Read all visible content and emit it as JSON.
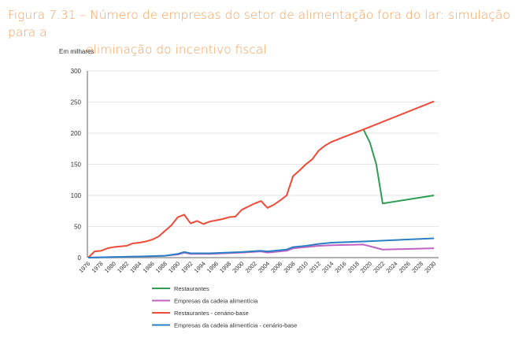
{
  "title_line1": "Figura 7.31 – Número de empresas do setor de alimentação fora do lar: simulação para a",
  "title_line2": "eliminação do incentivo fiscal",
  "chart_data": {
    "type": "line",
    "title": "Figura 7.31 – Número de empresas do setor de alimentação fora do lar: simulação para a eliminação do incentivo fiscal",
    "ylabel": "Em milhares",
    "xlabel": "",
    "ylim": [
      0,
      300
    ],
    "yticks": [
      0,
      50,
      100,
      150,
      200,
      250,
      300
    ],
    "xlim": [
      1976,
      2030
    ],
    "xticks": [
      1976,
      1978,
      1980,
      1982,
      1984,
      1986,
      1988,
      1990,
      1992,
      1994,
      1996,
      1998,
      2000,
      2002,
      2004,
      2006,
      2008,
      2010,
      2012,
      2014,
      2016,
      2018,
      2020,
      2022,
      2024,
      2026,
      2028,
      2030
    ],
    "grid": true,
    "legend": "bottom",
    "series": [
      {
        "name": "Restaurantes",
        "color": "#2e9e55",
        "points": [
          [
            2019,
            206
          ],
          [
            2020,
            185
          ],
          [
            2021,
            150
          ],
          [
            2022,
            87
          ],
          [
            2030,
            100
          ]
        ]
      },
      {
        "name": "Empresas da cadeia alimentícia",
        "color": "#c062c4",
        "points": [
          [
            1976,
            0
          ],
          [
            1980,
            1
          ],
          [
            1985,
            2
          ],
          [
            1988,
            3
          ],
          [
            1990,
            5
          ],
          [
            1991,
            8
          ],
          [
            1992,
            6
          ],
          [
            1995,
            6
          ],
          [
            2000,
            8
          ],
          [
            2003,
            10
          ],
          [
            2004,
            8
          ],
          [
            2007,
            11
          ],
          [
            2008,
            15
          ],
          [
            2010,
            17
          ],
          [
            2012,
            19
          ],
          [
            2014,
            20
          ],
          [
            2019,
            21
          ],
          [
            2022,
            13
          ],
          [
            2030,
            15
          ]
        ]
      },
      {
        "name": "Restaurantes - cenário-base",
        "color": "#f04a38",
        "points": [
          [
            1976,
            0
          ],
          [
            1977,
            10
          ],
          [
            1978,
            11
          ],
          [
            1979,
            15
          ],
          [
            1980,
            17
          ],
          [
            1981,
            18
          ],
          [
            1982,
            19
          ],
          [
            1983,
            23
          ],
          [
            1984,
            24
          ],
          [
            1985,
            26
          ],
          [
            1986,
            29
          ],
          [
            1987,
            34
          ],
          [
            1988,
            43
          ],
          [
            1989,
            52
          ],
          [
            1990,
            65
          ],
          [
            1991,
            69
          ],
          [
            1992,
            55
          ],
          [
            1993,
            59
          ],
          [
            1994,
            54
          ],
          [
            1995,
            58
          ],
          [
            1996,
            60
          ],
          [
            1997,
            62
          ],
          [
            1998,
            65
          ],
          [
            1999,
            66
          ],
          [
            2000,
            77
          ],
          [
            2001,
            82
          ],
          [
            2002,
            87
          ],
          [
            2003,
            91
          ],
          [
            2004,
            80
          ],
          [
            2005,
            85
          ],
          [
            2006,
            92
          ],
          [
            2007,
            100
          ],
          [
            2008,
            131
          ],
          [
            2009,
            140
          ],
          [
            2010,
            150
          ],
          [
            2011,
            158
          ],
          [
            2012,
            172
          ],
          [
            2013,
            180
          ],
          [
            2014,
            186
          ],
          [
            2015,
            190
          ],
          [
            2016,
            194
          ],
          [
            2017,
            198
          ],
          [
            2018,
            202
          ],
          [
            2019,
            206
          ],
          [
            2030,
            251
          ]
        ]
      },
      {
        "name": "Empresas da cadeia alimentícia - cenário-base",
        "color": "#2a80c4",
        "points": [
          [
            1976,
            0
          ],
          [
            1980,
            1
          ],
          [
            1985,
            2
          ],
          [
            1988,
            3
          ],
          [
            1990,
            6
          ],
          [
            1991,
            9
          ],
          [
            1992,
            7
          ],
          [
            1995,
            7
          ],
          [
            2000,
            9
          ],
          [
            2003,
            11
          ],
          [
            2004,
            10
          ],
          [
            2007,
            13
          ],
          [
            2008,
            17
          ],
          [
            2010,
            19
          ],
          [
            2012,
            22
          ],
          [
            2014,
            24
          ],
          [
            2019,
            26
          ],
          [
            2030,
            31
          ]
        ]
      }
    ]
  }
}
